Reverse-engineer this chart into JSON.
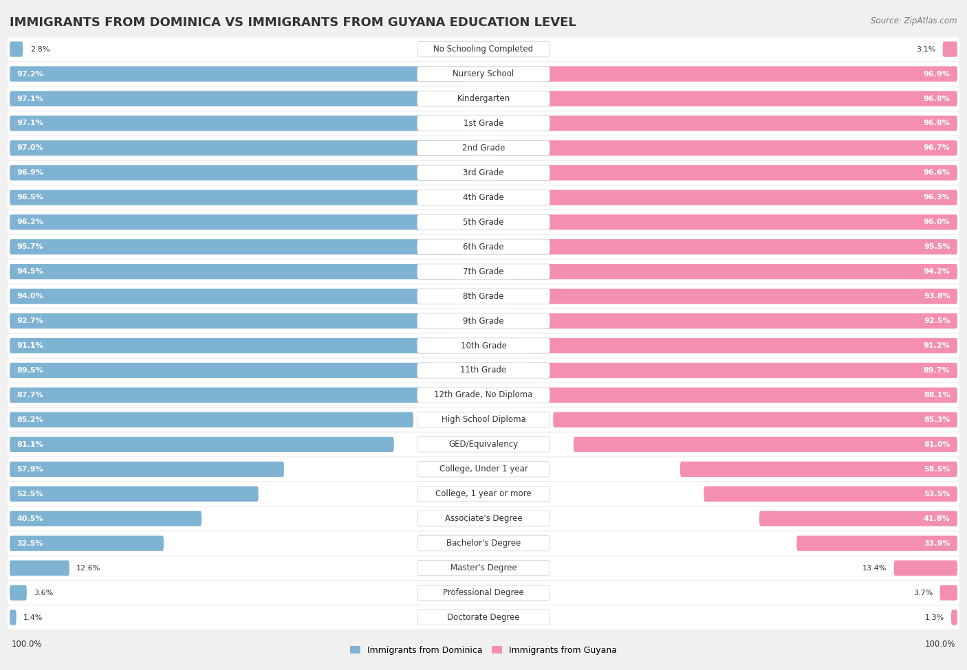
{
  "title": "IMMIGRANTS FROM DOMINICA VS IMMIGRANTS FROM GUYANA EDUCATION LEVEL",
  "source": "Source: ZipAtlas.com",
  "categories": [
    "No Schooling Completed",
    "Nursery School",
    "Kindergarten",
    "1st Grade",
    "2nd Grade",
    "3rd Grade",
    "4th Grade",
    "5th Grade",
    "6th Grade",
    "7th Grade",
    "8th Grade",
    "9th Grade",
    "10th Grade",
    "11th Grade",
    "12th Grade, No Diploma",
    "High School Diploma",
    "GED/Equivalency",
    "College, Under 1 year",
    "College, 1 year or more",
    "Associate's Degree",
    "Bachelor's Degree",
    "Master's Degree",
    "Professional Degree",
    "Doctorate Degree"
  ],
  "dominica": [
    2.8,
    97.2,
    97.1,
    97.1,
    97.0,
    96.9,
    96.5,
    96.2,
    95.7,
    94.5,
    94.0,
    92.7,
    91.1,
    89.5,
    87.7,
    85.2,
    81.1,
    57.9,
    52.5,
    40.5,
    32.5,
    12.6,
    3.6,
    1.4
  ],
  "guyana": [
    3.1,
    96.9,
    96.8,
    96.8,
    96.7,
    96.6,
    96.3,
    96.0,
    95.5,
    94.2,
    93.8,
    92.5,
    91.2,
    89.7,
    88.1,
    85.3,
    81.0,
    58.5,
    53.5,
    41.8,
    33.9,
    13.4,
    3.7,
    1.3
  ],
  "color_dominica": "#7fb3d3",
  "color_guyana": "#f48fb1",
  "bg_color": "#f0f0f0",
  "bar_bg_color": "#ffffff",
  "title_fontsize": 13,
  "label_fontsize": 8.5,
  "value_fontsize": 8.0,
  "legend_label_dominica": "Immigrants from Dominica",
  "legend_label_guyana": "Immigrants from Guyana",
  "xlim": 100
}
